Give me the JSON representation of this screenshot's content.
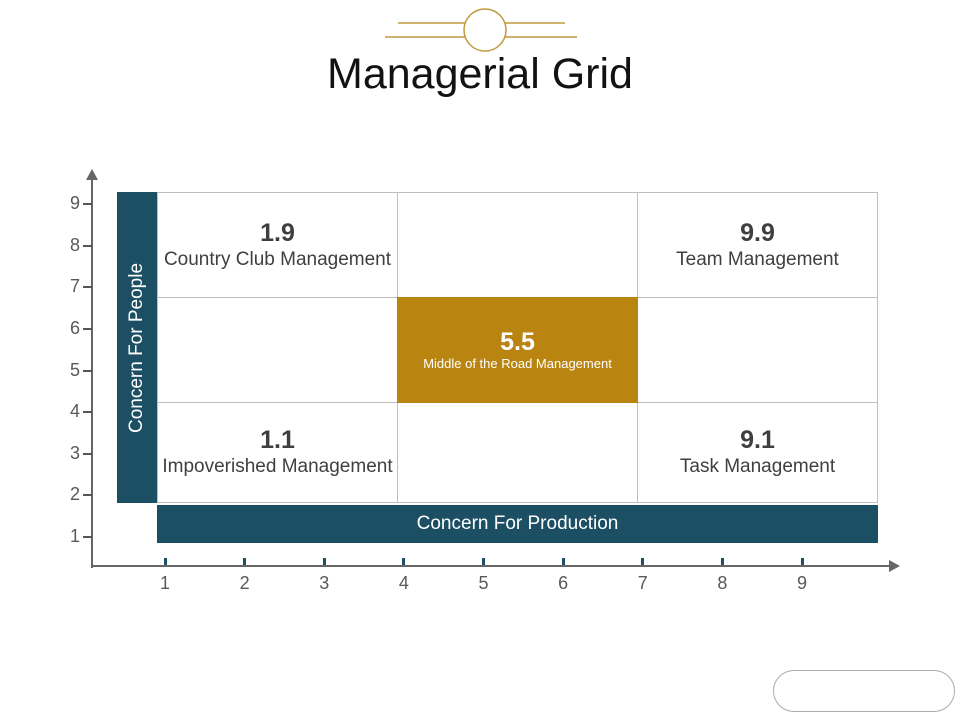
{
  "title": "Managerial Grid",
  "ornament": {
    "color": "#C19A3F"
  },
  "grid": {
    "y_axis_title": "Concern For People",
    "x_axis_title": "Concern For Production",
    "x_ticks": [
      "1",
      "2",
      "3",
      "4",
      "5",
      "6",
      "7",
      "8",
      "9"
    ],
    "y_ticks": [
      "9",
      "8",
      "7",
      "6",
      "5",
      "4",
      "3",
      "2",
      "1"
    ],
    "cells": {
      "top_left": {
        "score": "1.9",
        "label": "Country Club Management"
      },
      "top_right": {
        "score": "9.9",
        "label": "Team Management"
      },
      "center": {
        "score": "5.5",
        "label": "Middle of the Road Management"
      },
      "bottom_left": {
        "score": "1.1",
        "label": "Impoverished Management"
      },
      "bottom_right": {
        "score": "9.1",
        "label": "Task Management"
      }
    },
    "colors": {
      "axis_bar_teal": "#1C4F63",
      "highlight_cell_gold": "#B98410",
      "grid_line": "#BFBFBF",
      "axis_line": "#666666",
      "tick_label": "#595959",
      "cell_text": "#3F3F3F"
    }
  }
}
